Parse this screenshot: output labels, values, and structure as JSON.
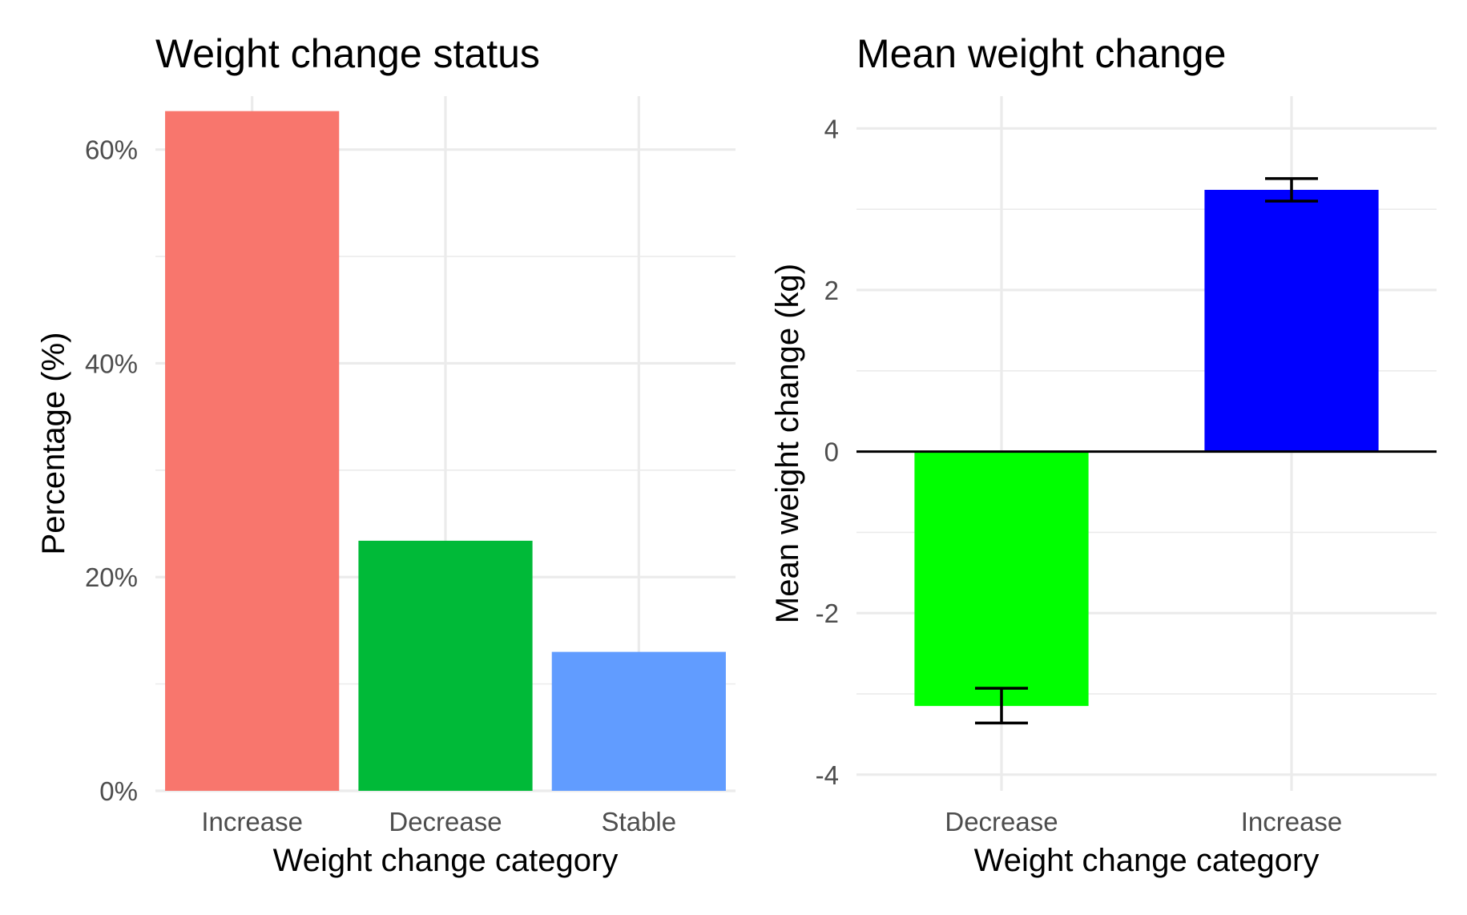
{
  "chart_data": [
    {
      "type": "bar",
      "title": "Weight change status",
      "xlabel": "Weight change category",
      "ylabel": "Percentage (%)",
      "categories": [
        "Increase",
        "Decrease",
        "Stable"
      ],
      "values": [
        63.6,
        23.4,
        13.0
      ],
      "colors": [
        "#F8766D",
        "#00BA38",
        "#619CFF"
      ],
      "ylim": [
        0,
        65
      ],
      "yticks": [
        0,
        20,
        40,
        60
      ],
      "ytick_labels": [
        "0%",
        "20%",
        "40%",
        "60%"
      ],
      "grid": true,
      "legend": "none"
    },
    {
      "type": "bar",
      "title": "Mean weight change",
      "xlabel": "Weight change category",
      "ylabel": "Mean weight change (kg)",
      "categories": [
        "Decrease",
        "Increase"
      ],
      "values": [
        -3.15,
        3.24
      ],
      "error_low": [
        -3.36,
        3.1
      ],
      "error_high": [
        -2.93,
        3.38
      ],
      "colors": [
        "#00FF00",
        "#0000FF"
      ],
      "ylim": [
        -4.2,
        4.4
      ],
      "yticks": [
        -4,
        -2,
        0,
        2,
        4
      ],
      "ytick_labels": [
        "-4",
        "-2",
        "0",
        "2",
        "4"
      ],
      "zero_line": true,
      "grid": true,
      "legend": "none"
    }
  ]
}
